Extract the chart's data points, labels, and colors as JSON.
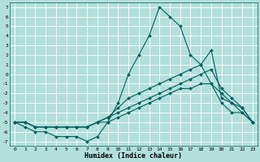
{
  "xlabel": "Humidex (Indice chaleur)",
  "ylabel": "",
  "background_color": "#b2dfdb",
  "grid_color": "#d0eeea",
  "line_color": "#005f5f",
  "xlim": [
    -0.5,
    23.5
  ],
  "ylim": [
    -7.5,
    7.5
  ],
  "xticks": [
    0,
    1,
    2,
    3,
    4,
    5,
    6,
    7,
    8,
    9,
    10,
    11,
    12,
    13,
    14,
    15,
    16,
    17,
    18,
    19,
    20,
    21,
    22,
    23
  ],
  "yticks": [
    7,
    6,
    5,
    4,
    3,
    2,
    1,
    0,
    -1,
    -2,
    -3,
    -4,
    -5,
    -6,
    -7
  ],
  "curves": [
    {
      "x": [
        0,
        1,
        2,
        3,
        4,
        5,
        6,
        7,
        8,
        9,
        10,
        11,
        12,
        13,
        14,
        15,
        16,
        17,
        18,
        19,
        20,
        21,
        22,
        23
      ],
      "y": [
        -5,
        -5.5,
        -6,
        -6,
        -6.5,
        -6.5,
        -6.5,
        -7,
        -6.5,
        -5,
        -3,
        0,
        2,
        4,
        7,
        6,
        5,
        2,
        1,
        -1,
        -3,
        -4,
        -4,
        -5
      ]
    },
    {
      "x": [
        0,
        1,
        2,
        3,
        4,
        5,
        6,
        7,
        8,
        9,
        10,
        11,
        12,
        13,
        14,
        15,
        16,
        17,
        18,
        19,
        20,
        21,
        22,
        23
      ],
      "y": [
        -5,
        -5,
        -5.5,
        -5.5,
        -5.5,
        -5.5,
        -5.5,
        -5.5,
        -5,
        -4.5,
        -3.5,
        -2.5,
        -2,
        -1.5,
        -1,
        -0.5,
        0,
        0.5,
        1,
        2.5,
        -2.5,
        -3,
        -3.5,
        -5
      ]
    },
    {
      "x": [
        0,
        1,
        2,
        3,
        4,
        5,
        6,
        7,
        8,
        9,
        10,
        11,
        12,
        13,
        14,
        15,
        16,
        17,
        18,
        19,
        20,
        21,
        22,
        23
      ],
      "y": [
        -5,
        -5,
        -5.5,
        -5.5,
        -5.5,
        -5.5,
        -5.5,
        -5.5,
        -5,
        -4.5,
        -4,
        -3.5,
        -3,
        -2.5,
        -2,
        -1.5,
        -1,
        -0.5,
        0,
        0.5,
        -1.5,
        -2.5,
        -3.5,
        -5
      ]
    },
    {
      "x": [
        0,
        1,
        2,
        3,
        4,
        5,
        6,
        7,
        8,
        9,
        10,
        11,
        12,
        13,
        14,
        15,
        16,
        17,
        18,
        19,
        20,
        21,
        22,
        23
      ],
      "y": [
        -5,
        -5,
        -5.5,
        -5.5,
        -5.5,
        -5.5,
        -5.5,
        -5.5,
        -5,
        -5,
        -4.5,
        -4,
        -3.5,
        -3,
        -2.5,
        -2,
        -1.5,
        -1.5,
        -1,
        -1,
        -2,
        -3,
        -4,
        -5
      ]
    }
  ]
}
